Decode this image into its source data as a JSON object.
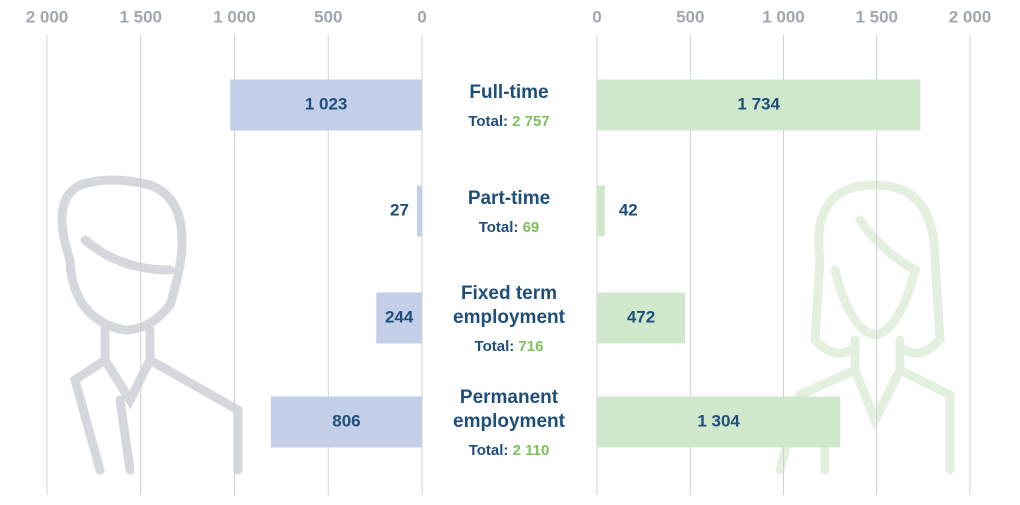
{
  "chart_data": {
    "type": "butterfly",
    "categories": [
      "Full-time",
      "Part-time",
      "Fixed term employment",
      "Permanent employment"
    ],
    "series": [
      {
        "color": "#c3cee9",
        "values": [
          1023,
          27,
          244,
          806
        ],
        "value_labels": [
          "1 023",
          "27",
          "244",
          "806"
        ]
      },
      {
        "color": "#cfe8cc",
        "values": [
          1734,
          42,
          472,
          1304
        ],
        "value_labels": [
          "1 734",
          "42",
          "472",
          "1 304"
        ]
      }
    ],
    "totals": {
      "label": "Total:",
      "color": "#7cc25a",
      "values": [
        2757,
        69,
        716,
        2110
      ],
      "value_labels": [
        "2 757",
        "69",
        "716",
        "2 110"
      ]
    },
    "xlim": [
      0,
      2000
    ],
    "xticks": [
      0,
      500,
      {
        "value": 1000,
        "label": "1 000"
      },
      {
        "value": 1500,
        "label": "1 500"
      },
      {
        "value": 2000,
        "label": "2 000"
      }
    ],
    "grid": true
  }
}
